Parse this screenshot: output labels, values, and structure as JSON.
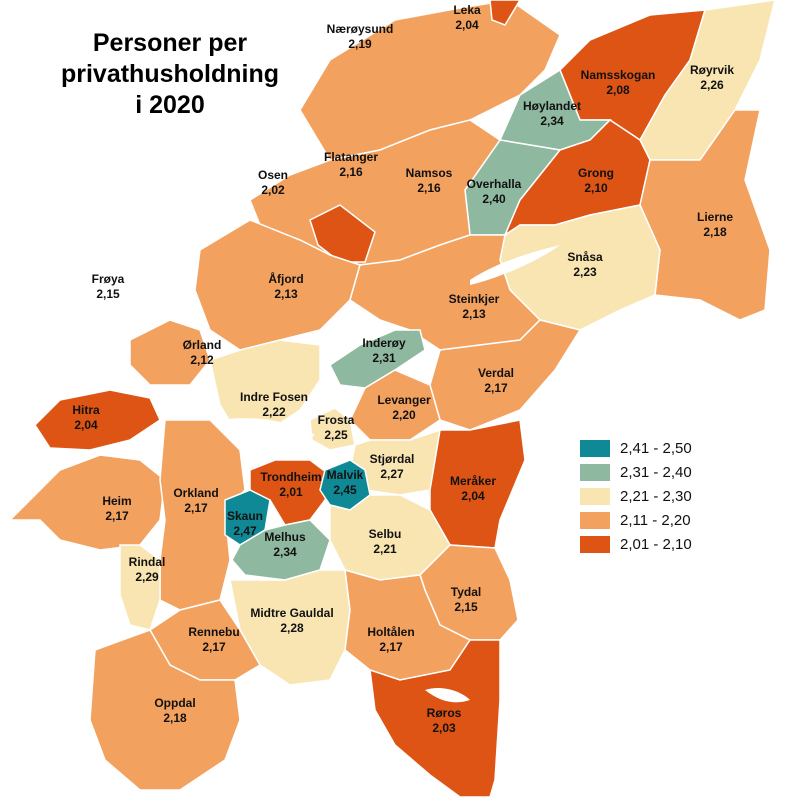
{
  "title": {
    "line1": "Personer per",
    "line2": "privathusholdning",
    "line3": "i 2020"
  },
  "colors": {
    "c1": "#0f8995",
    "c2": "#8fb8a0",
    "c3": "#f8e5b1",
    "c4": "#f2a15f",
    "c5": "#dd5414"
  },
  "legend": [
    {
      "label": "2,41 - 2,50",
      "color": "#0f8995"
    },
    {
      "label": "2,31 - 2,40",
      "color": "#8fb8a0"
    },
    {
      "label": "2,21 - 2,30",
      "color": "#f8e5b1"
    },
    {
      "label": "2,11 - 2,20",
      "color": "#f2a15f"
    },
    {
      "label": "2,01 - 2,10",
      "color": "#dd5414"
    }
  ],
  "municipalities": [
    {
      "name": "Leka",
      "value": "2,04"
    },
    {
      "name": "Nærøysund",
      "value": "2,19"
    },
    {
      "name": "Namsskogan",
      "value": "2,08"
    },
    {
      "name": "Røyrvik",
      "value": "2,26"
    },
    {
      "name": "Høylandet",
      "value": "2,34"
    },
    {
      "name": "Flatanger",
      "value": "2,16"
    },
    {
      "name": "Osen",
      "value": "2,02"
    },
    {
      "name": "Namsos",
      "value": "2,16"
    },
    {
      "name": "Overhalla",
      "value": "2,40"
    },
    {
      "name": "Grong",
      "value": "2,10"
    },
    {
      "name": "Lierne",
      "value": "2,18"
    },
    {
      "name": "Snåsa",
      "value": "2,23"
    },
    {
      "name": "Åfjord",
      "value": "2,13"
    },
    {
      "name": "Frøya",
      "value": "2,15"
    },
    {
      "name": "Steinkjer",
      "value": "2,13"
    },
    {
      "name": "Ørland",
      "value": "2,12"
    },
    {
      "name": "Inderøy",
      "value": "2,31"
    },
    {
      "name": "Verdal",
      "value": "2,17"
    },
    {
      "name": "Indre Fosen",
      "value": "2,22"
    },
    {
      "name": "Levanger",
      "value": "2,20"
    },
    {
      "name": "Hitra",
      "value": "2,04"
    },
    {
      "name": "Frosta",
      "value": "2,25"
    },
    {
      "name": "Stjørdal",
      "value": "2,27"
    },
    {
      "name": "Trondheim",
      "value": "2,01"
    },
    {
      "name": "Malvik",
      "value": "2,45"
    },
    {
      "name": "Meråker",
      "value": "2,04"
    },
    {
      "name": "Heim",
      "value": "2,17"
    },
    {
      "name": "Orkland",
      "value": "2,17"
    },
    {
      "name": "Skaun",
      "value": "2,47"
    },
    {
      "name": "Melhus",
      "value": "2,34"
    },
    {
      "name": "Selbu",
      "value": "2,21"
    },
    {
      "name": "Rindal",
      "value": "2,29"
    },
    {
      "name": "Tydal",
      "value": "2,15"
    },
    {
      "name": "Midtre Gauldal",
      "value": "2,28"
    },
    {
      "name": "Rennebu",
      "value": "2,17"
    },
    {
      "name": "Holtålen",
      "value": "2,17"
    },
    {
      "name": "Oppdal",
      "value": "2,18"
    },
    {
      "name": "Røros",
      "value": "2,03"
    }
  ]
}
